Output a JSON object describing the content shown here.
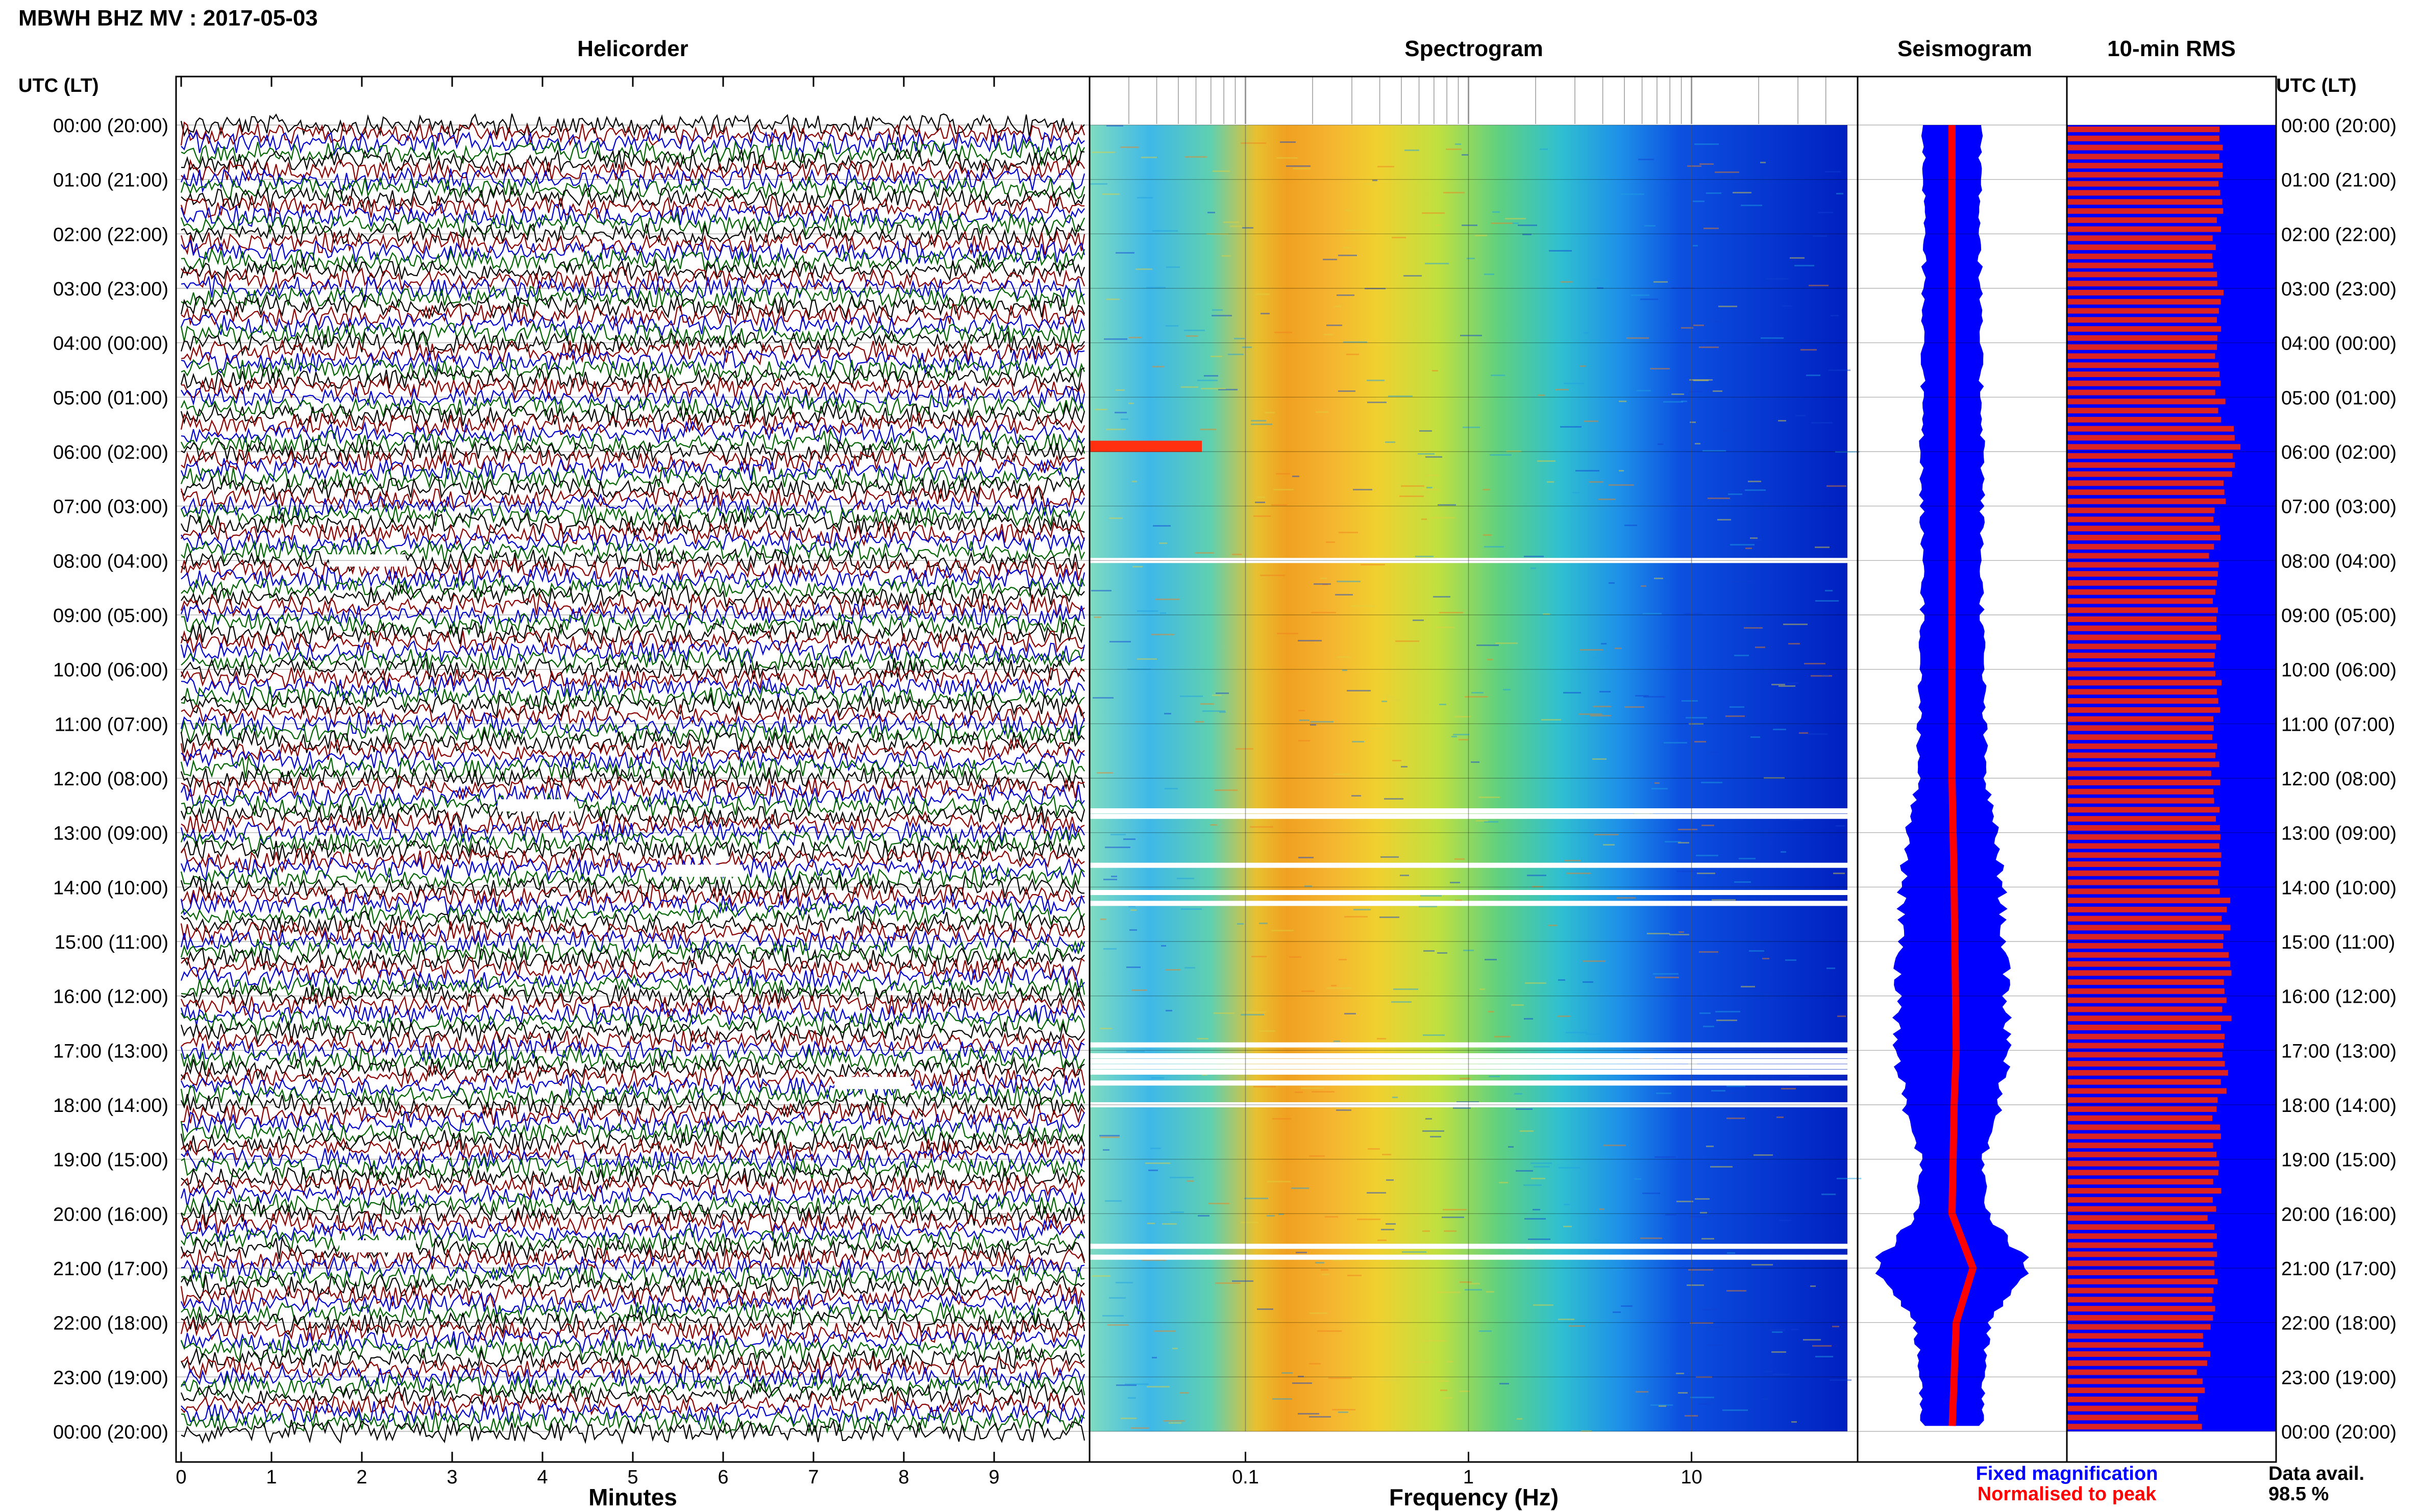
{
  "page_title": "MBWH BHZ MV : 2017-05-03",
  "panels": {
    "helicorder": "Helicorder",
    "spectrogram": "Spectrogram",
    "seismogram": "Seismogram",
    "rms": "10-min RMS"
  },
  "time_axis_label": "UTC (LT)",
  "hour_labels": [
    "00:00 (20:00)",
    "01:00 (21:00)",
    "02:00 (22:00)",
    "03:00 (23:00)",
    "04:00 (00:00)",
    "05:00 (01:00)",
    "06:00 (02:00)",
    "07:00 (03:00)",
    "08:00 (04:00)",
    "09:00 (05:00)",
    "10:00 (06:00)",
    "11:00 (07:00)",
    "12:00 (08:00)",
    "13:00 (09:00)",
    "14:00 (10:00)",
    "15:00 (11:00)",
    "16:00 (12:00)",
    "17:00 (13:00)",
    "18:00 (14:00)",
    "19:00 (15:00)",
    "20:00 (16:00)",
    "21:00 (17:00)",
    "22:00 (18:00)",
    "23:00 (19:00)",
    "00:00 (20:00)"
  ],
  "helicorder_x": {
    "label": "Minutes",
    "ticks": [
      "0",
      "1",
      "2",
      "3",
      "4",
      "5",
      "6",
      "7",
      "8",
      "9"
    ]
  },
  "spectrogram_x": {
    "label": "Frequency (Hz)",
    "ticks": [
      "0.1",
      "1",
      "10"
    ]
  },
  "legend": {
    "fixed": "Fixed magnification",
    "normalised": "Normalised to peak"
  },
  "availability": {
    "label": "Data avail.",
    "value": "98.5 %"
  },
  "colors": {
    "line_black": "#000000",
    "line_red": "#8b0000",
    "line_blue": "#0000cc",
    "line_green": "#006400",
    "rms_bar": "#dd2222",
    "rms_bg": "#0000ff",
    "seis_env": "#0000ff",
    "seis_norm": "#ff0000",
    "legend_fixed": "#0000ff",
    "legend_norm": "#ff0000"
  },
  "chart_data": [
    {
      "type": "line",
      "title": "Helicorder",
      "xlabel": "Minutes",
      "xlim": [
        0,
        10
      ],
      "rows_per_hour": 6,
      "trace_colors": [
        "black",
        "red",
        "blue",
        "green"
      ],
      "gaps_hours": [
        8.0,
        12.5,
        13.7,
        17.6,
        20.6
      ]
    },
    {
      "type": "heatmap",
      "title": "Spectrogram",
      "xlabel": "Frequency (Hz)",
      "xscale": "log",
      "xlim": [
        0.02,
        50
      ],
      "ylim_hours": [
        0,
        24
      ],
      "peak_band_hz": [
        0.15,
        0.5
      ],
      "gap_hours": [
        8.0,
        12.6,
        12.7,
        13.6,
        14.1,
        14.3,
        16.9,
        17.1,
        17.2,
        17.3,
        17.4,
        17.6,
        18.0,
        20.6,
        20.8
      ]
    },
    {
      "type": "line",
      "title": "Seismogram",
      "series": [
        {
          "name": "Fixed magnification",
          "hours": [
            0,
            2,
            4,
            6,
            8,
            10,
            12,
            13,
            14,
            15,
            16,
            17,
            18,
            19,
            20,
            20.5,
            21,
            21.5,
            22,
            23,
            24
          ],
          "width": [
            0.28,
            0.27,
            0.27,
            0.3,
            0.28,
            0.3,
            0.32,
            0.42,
            0.48,
            0.5,
            0.52,
            0.55,
            0.45,
            0.3,
            0.35,
            0.55,
            0.75,
            0.55,
            0.35,
            0.3,
            0.28
          ]
        },
        {
          "name": "Normalised to peak",
          "hours": [
            0,
            6,
            12,
            14,
            17,
            18,
            20,
            21,
            22,
            24
          ],
          "offset": [
            0.0,
            0.0,
            0.0,
            0.01,
            0.02,
            0.01,
            0.0,
            0.1,
            0.02,
            0.0
          ]
        }
      ]
    },
    {
      "type": "bar",
      "title": "10-min RMS",
      "orientation": "horizontal",
      "hours": [
        0,
        1,
        2,
        3,
        4,
        5,
        6,
        7,
        8,
        9,
        10,
        11,
        12,
        13,
        14,
        15,
        16,
        17,
        18,
        19,
        20,
        21,
        22,
        23
      ],
      "values": [
        0.74,
        0.73,
        0.72,
        0.72,
        0.71,
        0.73,
        0.82,
        0.72,
        0.7,
        0.72,
        0.71,
        0.72,
        0.71,
        0.74,
        0.75,
        0.76,
        0.76,
        0.77,
        0.72,
        0.72,
        0.7,
        0.7,
        0.68,
        0.64
      ]
    }
  ]
}
